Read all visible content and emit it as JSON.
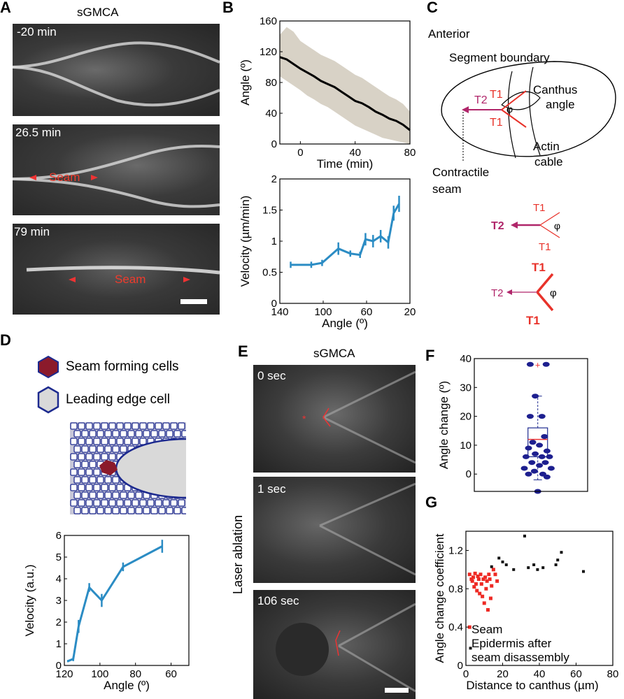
{
  "panelA": {
    "letter": "A",
    "title": "sGMCA",
    "frames": [
      {
        "time": "-20 min"
      },
      {
        "time": "26.5 min",
        "annotation": "Seam"
      },
      {
        "time": "79 min",
        "annotation": "Seam"
      }
    ]
  },
  "panelB": {
    "letter": "B",
    "top": {
      "ylabel": "Angle (º)",
      "xlabel": "Time (min)",
      "xticks": [
        "0",
        "40",
        "80"
      ],
      "yticks": [
        "0",
        "40",
        "80",
        "120",
        "160"
      ]
    },
    "bottom": {
      "ylabel": "Velocity (µm/min)",
      "xlabel": "Angle (º)",
      "xticks": [
        "140",
        "100",
        "60",
        "20"
      ],
      "yticks": [
        "0",
        "0.5",
        "1",
        "1.5",
        "2"
      ]
    }
  },
  "panelC": {
    "letter": "C",
    "labels": {
      "anterior": "Anterior",
      "segment_boundary": "Segment boundary",
      "canthus": "Canthus",
      "angle": "angle",
      "actin": "Actin",
      "cable": "cable",
      "contractile": "Contractile",
      "seam": "seam",
      "t1": "T1",
      "t2": "T2",
      "phi": "φ"
    }
  },
  "panelD": {
    "letter": "D",
    "legend": [
      "Seam forming cells",
      "Leading edge cell"
    ],
    "chart": {
      "ylabel": "Velocity (a.u.)",
      "xlabel": "Angle (º)",
      "xticks": [
        "120",
        "100",
        "80",
        "60"
      ],
      "yticks": [
        "0",
        "1",
        "2",
        "3",
        "4",
        "5",
        "6"
      ]
    }
  },
  "panelE": {
    "letter": "E",
    "title": "sGMCA",
    "side_label": "Laser ablation",
    "frames": [
      "0 sec",
      "1 sec",
      "106 sec"
    ]
  },
  "panelF": {
    "letter": "F",
    "ylabel": "Angle change (º)",
    "yticks": [
      "0",
      "10",
      "20",
      "30",
      "40"
    ]
  },
  "panelG": {
    "letter": "G",
    "ylabel": "Angle change coefficient",
    "xlabel": "Distance to canthus (µm)",
    "xticks": [
      "0",
      "20",
      "40",
      "60",
      "80"
    ],
    "yticks": [
      "0",
      "0.4",
      "0.8",
      "1.2"
    ],
    "legend": [
      "Seam",
      "Epidermis after",
      "seam disassembly"
    ]
  },
  "chart_data": [
    {
      "id": "B-top",
      "type": "line",
      "xlabel": "Time (min)",
      "ylabel": "Angle (º)",
      "xlim": [
        -15,
        80
      ],
      "ylim": [
        0,
        160
      ],
      "series": [
        {
          "x": [
            -15,
            -10,
            -5,
            0,
            5,
            10,
            15,
            20,
            25,
            30,
            35,
            40,
            45,
            50,
            55,
            60,
            65,
            70,
            75,
            80
          ],
          "y": [
            113,
            110,
            104,
            98,
            93,
            88,
            82,
            78,
            74,
            68,
            62,
            56,
            53,
            48,
            42,
            38,
            33,
            30,
            25,
            18
          ]
        }
      ],
      "band_low": [
        88,
        82,
        76,
        70,
        63,
        58,
        52,
        48,
        42,
        36,
        30,
        24,
        20,
        16,
        12,
        8,
        6,
        4,
        2,
        0
      ],
      "band_high": [
        142,
        152,
        146,
        134,
        128,
        122,
        116,
        112,
        108,
        102,
        96,
        90,
        86,
        80,
        74,
        68,
        62,
        58,
        52,
        42
      ]
    },
    {
      "id": "B-bottom",
      "type": "line",
      "xlabel": "Angle (º)",
      "ylabel": "Velocity (µm/min)",
      "xlim": [
        140,
        20
      ],
      "ylim": [
        0,
        2
      ],
      "series": [
        {
          "x": [
            130,
            111,
            101,
            86,
            75,
            66,
            61,
            54,
            47,
            40,
            35,
            30
          ],
          "y": [
            0.62,
            0.62,
            0.65,
            0.88,
            0.8,
            0.78,
            1.03,
            1.0,
            1.08,
            0.98,
            1.45,
            1.6
          ],
          "err": [
            0.05,
            0.05,
            0.05,
            0.1,
            0.05,
            0.05,
            0.1,
            0.1,
            0.1,
            0.1,
            0.12,
            0.13
          ]
        }
      ]
    },
    {
      "id": "D",
      "type": "line",
      "xlabel": "Angle (º)",
      "ylabel": "Velocity (a.u.)",
      "xlim": [
        120,
        50
      ],
      "ylim": [
        0,
        6
      ],
      "series": [
        {
          "x": [
            118,
            115,
            112,
            106,
            99,
            87,
            65
          ],
          "y": [
            0.2,
            0.3,
            1.8,
            3.6,
            3.0,
            4.55,
            5.5
          ],
          "err": [
            0.05,
            0.1,
            0.3,
            0.2,
            0.3,
            0.2,
            0.3
          ]
        }
      ]
    },
    {
      "id": "F",
      "type": "scatter",
      "ylabel": "Angle change (º)",
      "ylim": [
        -6,
        40
      ],
      "box": {
        "q1": 6,
        "median": 12,
        "q3": 16,
        "whisker_low": -2,
        "whisker_high": 27,
        "mean": 12,
        "outlier": 38
      },
      "points": [
        [
          -0.9,
          38
        ],
        [
          1.0,
          38
        ],
        [
          -0.3,
          27
        ],
        [
          0.5,
          20
        ],
        [
          -0.9,
          20
        ],
        [
          0.8,
          13
        ],
        [
          -0.6,
          11
        ],
        [
          0.2,
          10
        ],
        [
          -1.1,
          9
        ],
        [
          1.1,
          8
        ],
        [
          -0.3,
          7
        ],
        [
          0.5,
          6
        ],
        [
          -1.4,
          6
        ],
        [
          1.4,
          6
        ],
        [
          -0.7,
          4
        ],
        [
          0.9,
          4
        ],
        [
          0.2,
          3
        ],
        [
          -1.6,
          2
        ],
        [
          1.6,
          2
        ],
        [
          -0.4,
          1
        ],
        [
          0.6,
          0
        ],
        [
          -1.1,
          0
        ],
        [
          1.1,
          -1
        ],
        [
          0.0,
          -6
        ]
      ]
    },
    {
      "id": "G",
      "type": "scatter",
      "xlabel": "Distance to canthus (µm)",
      "ylabel": "Angle change coefficient",
      "xlim": [
        0,
        80
      ],
      "ylim": [
        0,
        1.4
      ],
      "series": [
        {
          "name": "Seam",
          "points": [
            [
              2,
              0.95
            ],
            [
              3,
              0.9
            ],
            [
              3.5,
              0.88
            ],
            [
              4,
              0.92
            ],
            [
              4.5,
              0.82
            ],
            [
              5,
              0.96
            ],
            [
              5.5,
              0.85
            ],
            [
              6,
              0.78
            ],
            [
              6.5,
              0.93
            ],
            [
              7,
              0.9
            ],
            [
              7.5,
              0.75
            ],
            [
              8,
              0.95
            ],
            [
              8.5,
              0.85
            ],
            [
              9,
              0.72
            ],
            [
              9.5,
              0.9
            ],
            [
              10,
              0.65
            ],
            [
              10.5,
              0.92
            ],
            [
              11,
              0.8
            ],
            [
              11.5,
              0.88
            ],
            [
              12,
              0.58
            ],
            [
              12.5,
              0.95
            ],
            [
              13,
              0.9
            ],
            [
              13.5,
              0.7
            ],
            [
              14,
              0.83
            ],
            [
              15,
              1.0
            ],
            [
              16,
              0.95
            ],
            [
              17,
              0.88
            ],
            [
              2,
              0.4
            ]
          ]
        },
        {
          "name": "Epidermis after seam disassembly",
          "points": [
            [
              2.5,
              0.18
            ],
            [
              14,
              1.03
            ],
            [
              18,
              1.12
            ],
            [
              20,
              1.08
            ],
            [
              22,
              1.05
            ],
            [
              26,
              1.0
            ],
            [
              32,
              1.35
            ],
            [
              34,
              1.02
            ],
            [
              37,
              1.05
            ],
            [
              39,
              1.0
            ],
            [
              42,
              1.02
            ],
            [
              49,
              1.05
            ],
            [
              50,
              1.1
            ],
            [
              52,
              1.18
            ],
            [
              64,
              0.98
            ]
          ]
        }
      ]
    }
  ]
}
